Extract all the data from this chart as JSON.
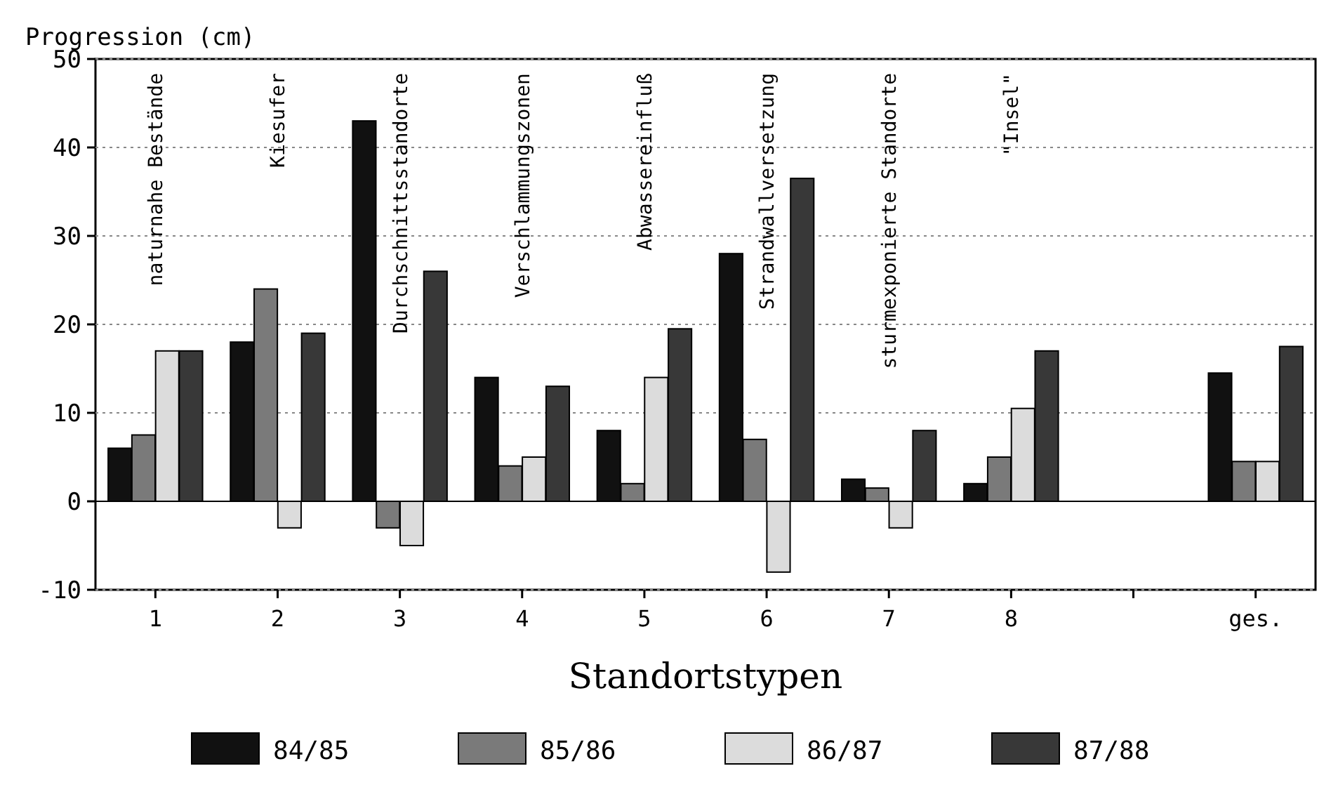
{
  "chart_data": {
    "type": "bar",
    "ylabel": "Progression (cm)",
    "xlabel": "Standortstypen",
    "categories": [
      "1",
      "2",
      "3",
      "4",
      "5",
      "6",
      "7",
      "8",
      null,
      "ges."
    ],
    "series": [
      {
        "name": "84/85",
        "color": "#111111",
        "values": [
          6,
          18,
          43,
          14,
          8,
          28,
          2.5,
          2,
          null,
          14.5
        ]
      },
      {
        "name": "85/86",
        "color": "#7a7a7a",
        "values": [
          7.5,
          24,
          -3,
          4,
          2,
          7,
          1.5,
          5,
          null,
          4.5
        ]
      },
      {
        "name": "86/87",
        "color": "#dcdcdc",
        "values": [
          17,
          -3,
          -5,
          5,
          14,
          -8,
          -3,
          10.5,
          null,
          4.5
        ]
      },
      {
        "name": "87/88",
        "color": "#383838",
        "values": [
          17,
          19,
          26,
          13,
          19.5,
          36.5,
          8,
          17,
          null,
          17.5
        ]
      }
    ],
    "ylim": [
      -10,
      50
    ],
    "yticks": [
      -10,
      0,
      10,
      20,
      30,
      40,
      50
    ],
    "grid": "y",
    "legend": "bottom",
    "annotations": [
      "naturnahe Bestände",
      "Kiesufer",
      "Durchschnittsstandorte",
      "Verschlammungszonen",
      "Abwassereinfluß",
      "Strandwallversetzung",
      "sturmexponierte Standorte",
      "\"Insel\""
    ]
  }
}
